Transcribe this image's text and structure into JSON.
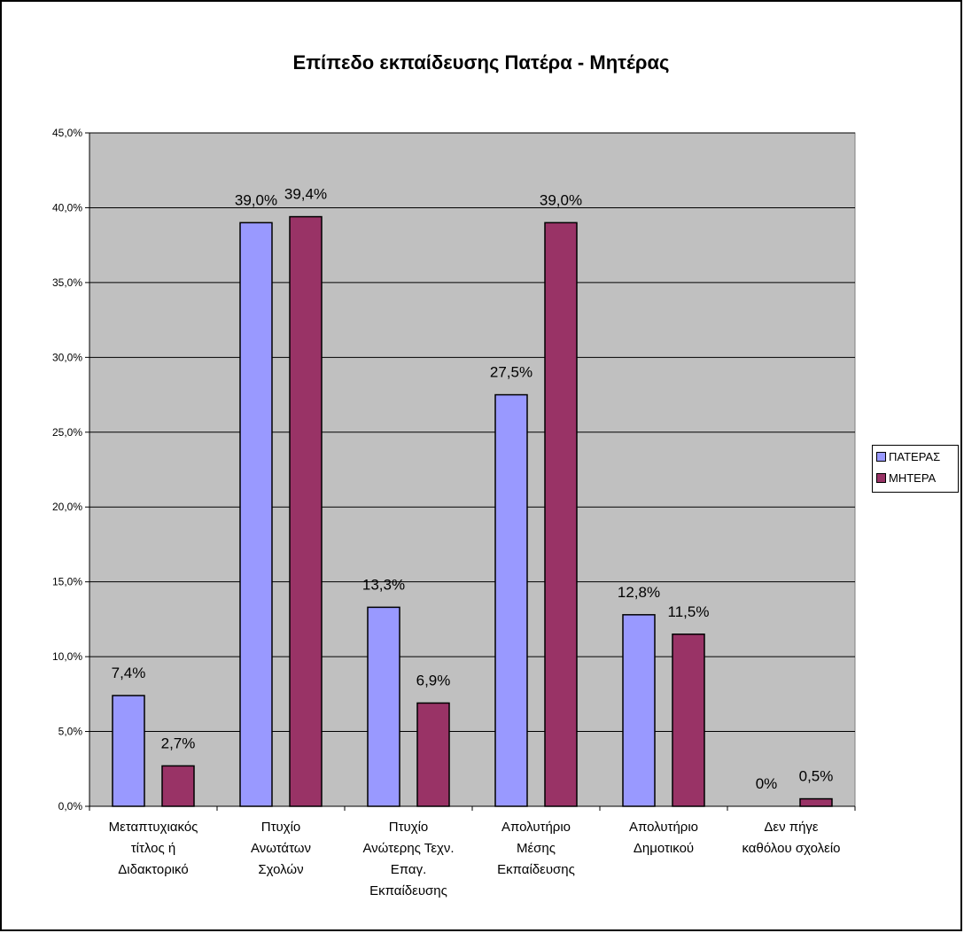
{
  "chart_data": {
    "type": "bar",
    "title": "Επίπεδο εκπαίδευσης Πατέρα - Μητέρας",
    "xlabel": "",
    "ylabel": "",
    "ylim": [
      0,
      45
    ],
    "yticks": [
      0,
      5,
      10,
      15,
      20,
      25,
      30,
      35,
      40,
      45
    ],
    "ytick_labels": [
      "0,0%",
      "5,0%",
      "10,0%",
      "15,0%",
      "20,0%",
      "25,0%",
      "30,0%",
      "35,0%",
      "40,0%",
      "45,0%"
    ],
    "grid": true,
    "legend_position": "right",
    "categories": [
      [
        "Μεταπτυχιακός",
        "τίτλος ή",
        "Διδακτορικό"
      ],
      [
        "Πτυχίο",
        "Ανωτάτων",
        "Σχολών"
      ],
      [
        "Πτυχίο",
        "Ανώτερης Τεχν.",
        "Επαγ.",
        "Εκπαίδευσης"
      ],
      [
        "Απολυτήριο",
        "Μέσης",
        "Εκπαίδευσης"
      ],
      [
        "Απολυτήριο",
        "Δημοτικού"
      ],
      [
        "Δεν πήγε",
        "καθόλου σχολείο"
      ]
    ],
    "series": [
      {
        "name": "ΠΑΤΕΡΑΣ",
        "color": "#9999ff",
        "values": [
          7.4,
          39.0,
          13.3,
          27.5,
          12.8,
          0
        ],
        "labels": [
          "7,4%",
          "39,0%",
          "13,3%",
          "27,5%",
          "12,8%",
          "0%"
        ]
      },
      {
        "name": "ΜΗΤΕΡΑ",
        "color": "#993366",
        "values": [
          2.7,
          39.4,
          6.9,
          39.0,
          11.5,
          0.5
        ],
        "labels": [
          "2,7%",
          "39,4%",
          "6,9%",
          "39,0%",
          "11,5%",
          "0,5%"
        ]
      }
    ],
    "plot_background": "#c0c0c0"
  }
}
